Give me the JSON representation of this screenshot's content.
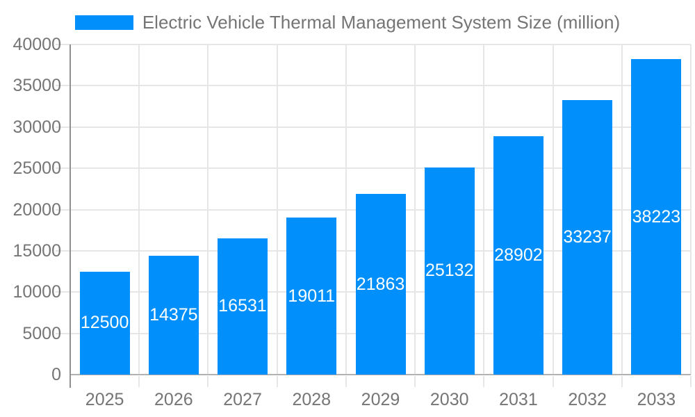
{
  "legend": {
    "label": "Electric Vehicle Thermal Management System Size (million)"
  },
  "chart_data": {
    "type": "bar",
    "title": "",
    "categories": [
      "2025",
      "2026",
      "2027",
      "2028",
      "2029",
      "2030",
      "2031",
      "2032",
      "2033"
    ],
    "series": [
      {
        "name": "Electric Vehicle Thermal Management System Size (million)",
        "values": [
          12500,
          14375,
          16531,
          19011,
          21863,
          25132,
          28902,
          33237,
          38223
        ]
      }
    ],
    "value_labels_shown": true,
    "xlabel": "",
    "ylabel": "",
    "ylim": [
      0,
      40000
    ],
    "ytick_step": 5000,
    "yticks": [
      0,
      5000,
      10000,
      15000,
      20000,
      25000,
      30000,
      35000,
      40000
    ],
    "grid": true,
    "legend_position": "top",
    "colors": {
      "bar": "#0190fb",
      "value_label": "#ffffff",
      "axis_text": "#757575",
      "grid_line": "#e6e6e6",
      "x_axis_line": "#b2b2b2",
      "y_axis_line": "#8f8f8f",
      "background": "#ffffff"
    }
  }
}
